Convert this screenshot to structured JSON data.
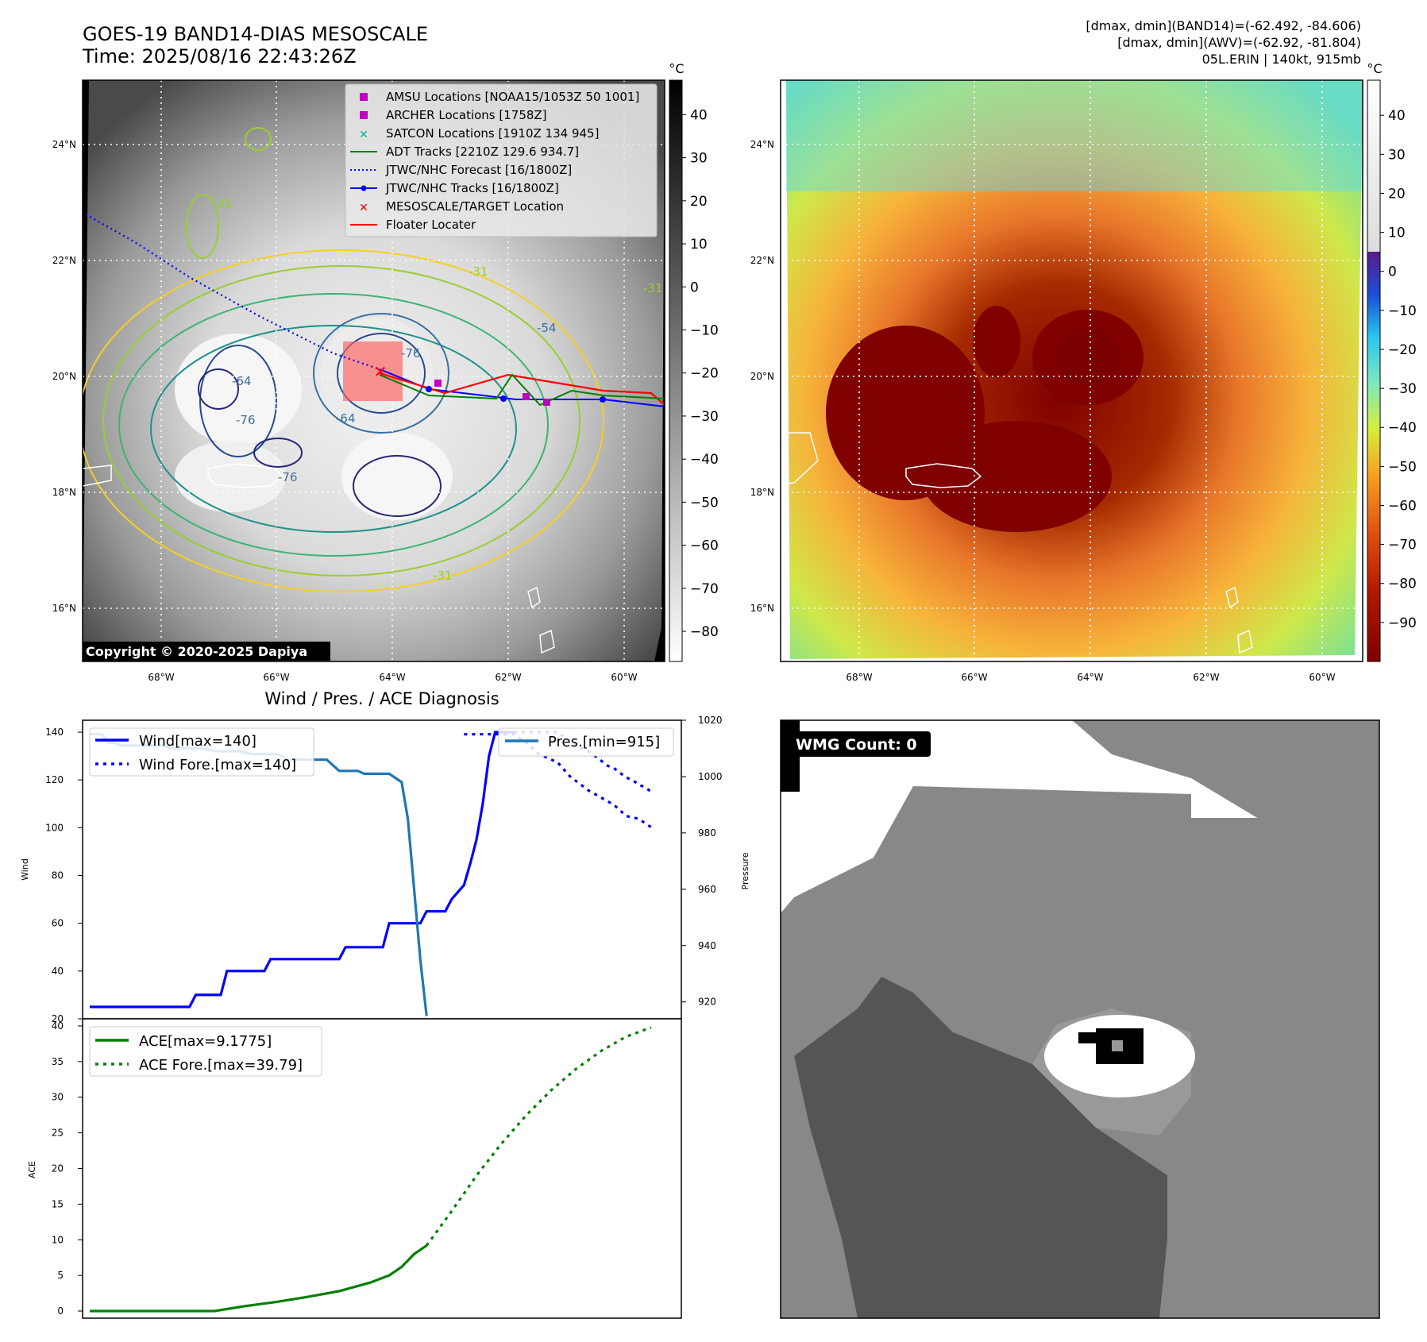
{
  "header": {
    "title": "GOES-19 BAND14-DIAS MESOSCALE",
    "time": "Time: 2025/08/16 22:43:26Z",
    "info_line1": "[dmax, dmin](BAND14)=(-62.492, -84.606)",
    "info_line2": "[dmax, dmin](AWV)=(-62.92, -81.804)",
    "info_line3": "05L.ERIN | 140kt, 915mb"
  },
  "map_axes": {
    "lat_labels": [
      "24°N",
      "22°N",
      "20°N",
      "18°N",
      "16°N"
    ],
    "lon_labels": [
      "68°W",
      "66°W",
      "64°W",
      "62°W",
      "60°W"
    ]
  },
  "colorbar_gray": {
    "unit": "°C",
    "ticks": [
      "40",
      "30",
      "20",
      "10",
      "0",
      "−10",
      "−20",
      "−30",
      "−40",
      "−50",
      "−60",
      "−70",
      "−80"
    ]
  },
  "colorbar_color": {
    "unit": "°C",
    "ticks": [
      "40",
      "30",
      "20",
      "10",
      "0",
      "−10",
      "−20",
      "−30",
      "−40",
      "−50",
      "−60",
      "−70",
      "−80",
      "−90"
    ]
  },
  "contour_labels": [
    "-31",
    "-31",
    "-31",
    "-54",
    "-64",
    "-64",
    "-76",
    "-76",
    "-76",
    "-31"
  ],
  "legend_map": [
    {
      "label": "AMSU Locations [NOAA15/1053Z 50 1001]",
      "color": "#c000c0",
      "marker": "square"
    },
    {
      "label": "ARCHER Locations [1758Z]",
      "color": "#c000c0",
      "marker": "square"
    },
    {
      "label": "SATCON Locations [1910Z 134 945]",
      "color": "#00b0b0",
      "marker": "x"
    },
    {
      "label": "ADT Tracks [2210Z 129.6 934.7]",
      "color": "#008000",
      "marker": "line"
    },
    {
      "label": "JTWC/NHC Forecast [16/1800Z]",
      "color": "#0000ff",
      "marker": "dotted"
    },
    {
      "label": "JTWC/NHC Tracks [16/1800Z]",
      "color": "#0000ff",
      "marker": "line-dot"
    },
    {
      "label": "MESOSCALE/TARGET Location",
      "color": "#ff0000",
      "marker": "x"
    },
    {
      "label": "Floater Locater",
      "color": "#ff0000",
      "marker": "line"
    }
  ],
  "copyright": "Copyright © 2020-2025 Dapiya",
  "wmg": {
    "label": "WMG Count: 0"
  },
  "chart_data": [
    {
      "type": "line",
      "title": "Wind / Pres. / ACE Diagnosis",
      "ylabel": "Wind",
      "ylabel_right": "Pressure",
      "ylim": [
        20,
        145
      ],
      "ylim_right": [
        914,
        1020
      ],
      "yticks": [
        20,
        40,
        60,
        80,
        100,
        120,
        140
      ],
      "yticks_right": [
        920,
        940,
        960,
        980,
        1000,
        1020
      ],
      "legend_left": [
        "Wind[max=140]",
        "Wind Fore.[max=140]"
      ],
      "legend_right": [
        "Pres.[min=915]"
      ],
      "series": [
        {
          "name": "Wind[max=140]",
          "color": "#0000ff",
          "style": "solid",
          "x": [
            0,
            16,
            17,
            21,
            22,
            28,
            29,
            40,
            41,
            47,
            48,
            53,
            54,
            57,
            58,
            60,
            61,
            62,
            63,
            64,
            65,
            66,
            67,
            68
          ],
          "values": [
            25,
            25,
            30,
            30,
            40,
            40,
            45,
            45,
            50,
            50,
            60,
            60,
            65,
            65,
            70,
            76,
            85,
            95,
            110,
            130,
            140,
            140,
            140,
            140
          ]
        },
        {
          "name": "Wind Fore.[max=140]",
          "color": "#0000ff",
          "style": "dotted",
          "x": [
            68,
            69,
            70,
            71,
            72,
            73,
            74,
            75,
            76,
            77,
            78,
            79,
            80,
            81,
            82,
            83,
            84,
            85,
            86,
            87,
            88,
            89,
            90
          ],
          "values": [
            140,
            140,
            140,
            140,
            140,
            140,
            140,
            140,
            138,
            136,
            135,
            133,
            132,
            130,
            128,
            126,
            125,
            123,
            121,
            120,
            118,
            117,
            115
          ]
        },
        {
          "name": "Pres.[min=915]",
          "color": "#1f77b4",
          "style": "solid",
          "axis": "right",
          "x": [
            0,
            2,
            3,
            4,
            5,
            12,
            13,
            18,
            20,
            24,
            26,
            30,
            32,
            38,
            40,
            43,
            44,
            46,
            48,
            50,
            51,
            52,
            53,
            54
          ],
          "values": [
            1015,
            1015,
            1012,
            1012,
            1011,
            1011,
            1010,
            1010,
            1009,
            1009,
            1008,
            1008,
            1006,
            1006,
            1002,
            1002,
            1001,
            1001,
            1001,
            998,
            985,
            960,
            935,
            915
          ]
        },
        {
          "name": "",
          "color": "#0000ff",
          "style": "dotted",
          "axis": "right",
          "x": [
            60,
            66,
            68,
            70,
            72,
            75,
            77,
            80,
            84,
            86,
            88,
            90
          ],
          "values": [
            1015,
            1015,
            1015,
            1012,
            1008,
            1005,
            1000,
            995,
            990,
            986,
            985,
            982
          ]
        }
      ]
    },
    {
      "type": "line",
      "ylabel": "ACE",
      "ylim": [
        -1,
        41
      ],
      "yticks": [
        0,
        5,
        10,
        15,
        20,
        25,
        30,
        35,
        40
      ],
      "legend": [
        "ACE[max=9.1775]",
        "ACE Fore.[max=39.79]"
      ],
      "series": [
        {
          "name": "ACE[max=9.1775]",
          "color": "#008000",
          "style": "solid",
          "x": [
            0,
            10,
            20,
            25,
            30,
            35,
            40,
            45,
            48,
            50,
            52,
            54
          ],
          "values": [
            0,
            0,
            0,
            0.7,
            1.3,
            2,
            2.8,
            4,
            5,
            6.2,
            8,
            9.18
          ]
        },
        {
          "name": "ACE Fore.[max=39.79]",
          "color": "#008000",
          "style": "dotted",
          "x": [
            54,
            58,
            62,
            66,
            70,
            74,
            78,
            82,
            86,
            90
          ],
          "values": [
            9.18,
            14,
            19,
            23.5,
            27.5,
            31,
            34,
            36.5,
            38.5,
            39.79
          ]
        }
      ]
    }
  ]
}
